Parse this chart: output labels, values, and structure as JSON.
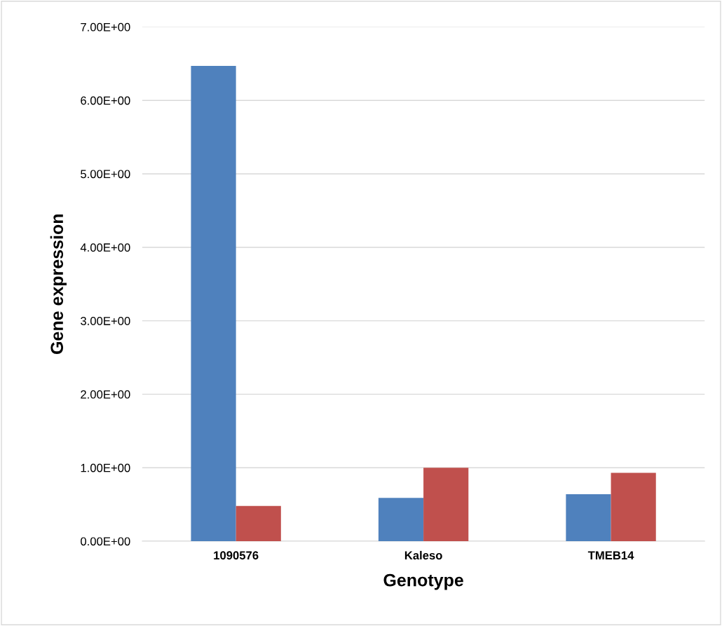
{
  "chart_data": {
    "type": "bar",
    "xlabel": "Genotype",
    "ylabel": "Gene expression",
    "categories": [
      "1090576",
      "Kaleso",
      "TMEB14"
    ],
    "series": [
      {
        "color": "#4f81bd",
        "values": [
          6.47,
          0.59,
          0.64
        ]
      },
      {
        "color": "#c0504d",
        "values": [
          0.48,
          1.0,
          0.93
        ]
      }
    ],
    "ylim": [
      0,
      7
    ],
    "yticks": [
      {
        "value": 0,
        "label": "0.00E+00"
      },
      {
        "value": 1,
        "label": "1.00E+00"
      },
      {
        "value": 2,
        "label": "2.00E+00"
      },
      {
        "value": 3,
        "label": "3.00E+00"
      },
      {
        "value": 4,
        "label": "4.00E+00"
      },
      {
        "value": 5,
        "label": "5.00E+00"
      },
      {
        "value": 6,
        "label": "6.00E+00"
      },
      {
        "value": 7,
        "label": "7.00E+00"
      }
    ],
    "grid": "y",
    "legend": false
  }
}
